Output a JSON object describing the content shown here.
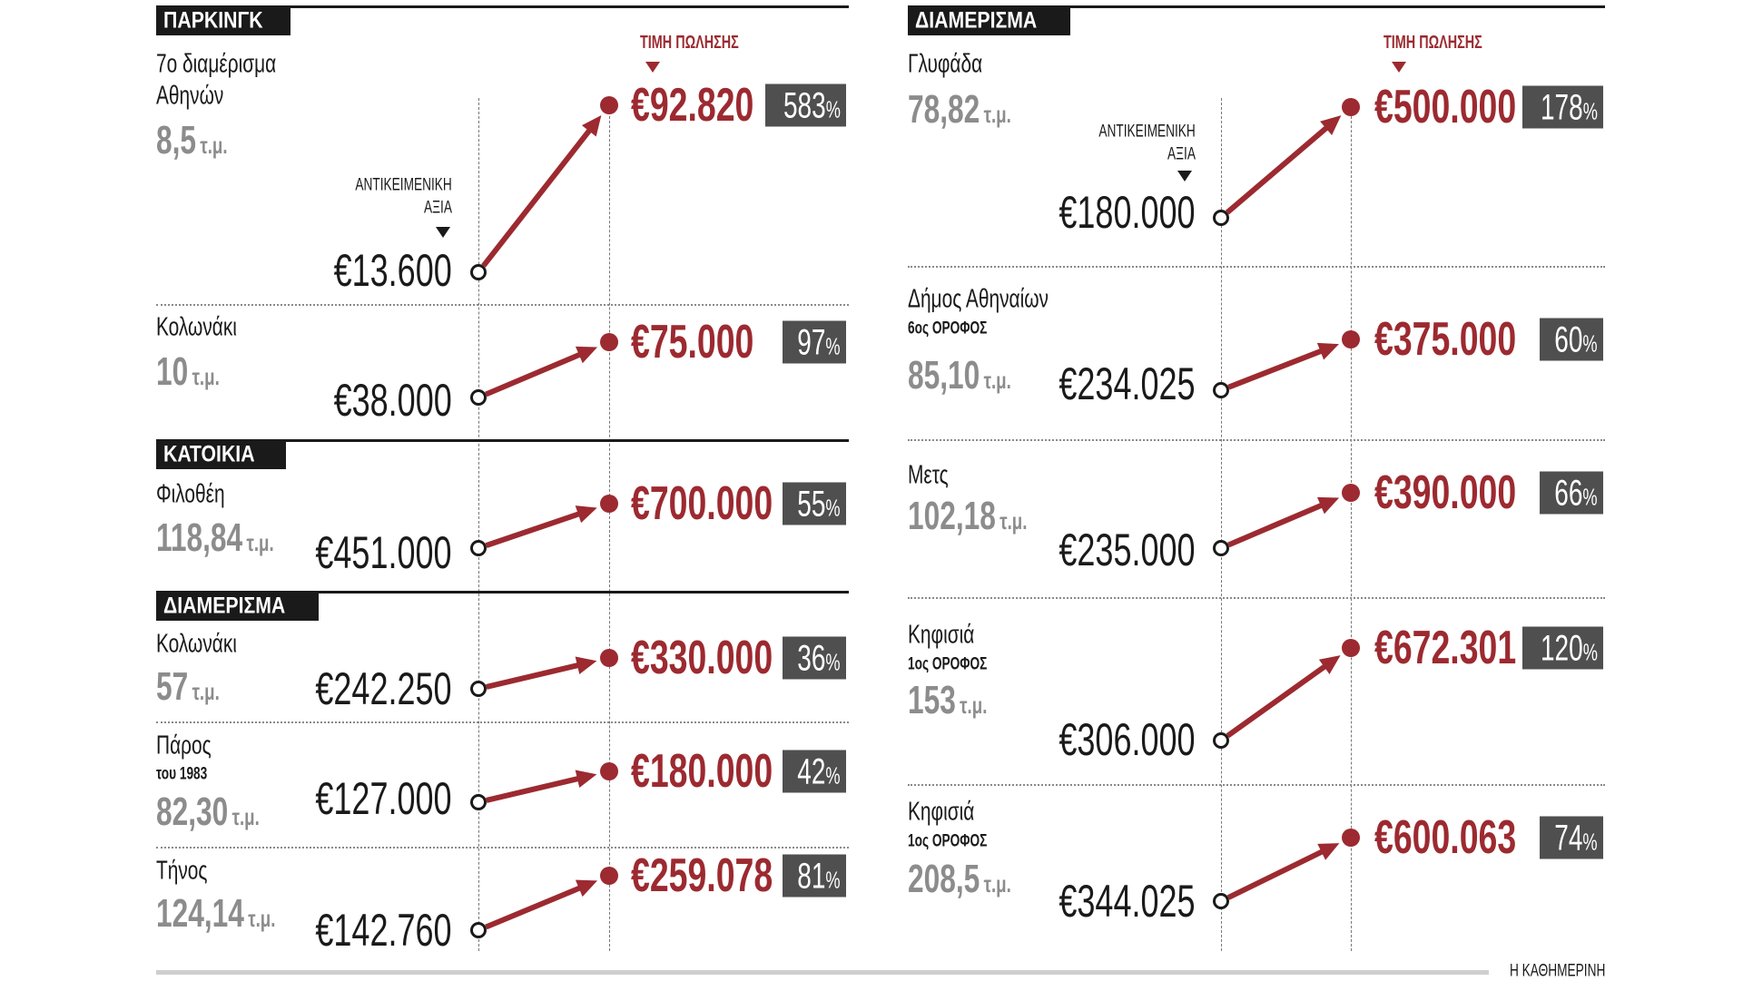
{
  "labels": {
    "objective_value": [
      "ΑΝΤΙΚΕΙΜΕΝΙΚΗ",
      "ΑΞΙΑ"
    ],
    "sale_price": "ΤΙΜΗ ΠΩΛΗΣΗΣ",
    "unit": "τ.μ.",
    "pct_symbol": "%",
    "source": "Η ΚΑΘΗΜΕΡΙΝΗ"
  },
  "colors": {
    "accent": "#9c2a30",
    "badge": "#4f4f4f",
    "size_text": "#8c8c8c",
    "header": "#1a1a1a"
  },
  "chart_data": {
    "type": "slope",
    "title": "",
    "xlabel": "",
    "ylabel": "",
    "left": {
      "sections": [
        {
          "title": "ΠΑΡΚΙΝΓΚ",
          "rows": [
            {
              "name": "7ο διαμέρισμα",
              "name_line2": "Αθηνών",
              "size": "8,5",
              "value": "€13.600",
              "sale": "€92.820",
              "pct": "583"
            },
            {
              "name": "Κολωνάκι",
              "size": "10",
              "value": "€38.000",
              "sale": "€75.000",
              "pct": "97"
            }
          ]
        },
        {
          "title": "ΚΑΤΟΙΚΙΑ",
          "rows": [
            {
              "name": "Φιλοθέη",
              "size": "118,84",
              "value": "€451.000",
              "sale": "€700.000",
              "pct": "55"
            }
          ]
        },
        {
          "title": "ΔΙΑΜΕΡΙΣΜΑ",
          "rows": [
            {
              "name": "Κολωνάκι",
              "size": "57",
              "value": "€242.250",
              "sale": "€330.000",
              "pct": "36"
            },
            {
              "name": "Πάρος",
              "sub": "του 1983",
              "size": "82,30",
              "value": "€127.000",
              "sale": "€180.000",
              "pct": "42"
            },
            {
              "name": "Τήνος",
              "size": "124,14",
              "value": "€142.760",
              "sale": "€259.078",
              "pct": "81"
            }
          ]
        }
      ]
    },
    "right": {
      "sections": [
        {
          "title": "ΔΙΑΜΕΡΙΣΜΑ",
          "rows": [
            {
              "name": "Γλυφάδα",
              "size": "78,82",
              "value": "€180.000",
              "sale": "€500.000",
              "pct": "178"
            },
            {
              "name": "Δήμος Αθηναίων",
              "sub": "6ος ΟΡΟΦΟΣ",
              "size": "85,10",
              "value": "€234.025",
              "sale": "€375.000",
              "pct": "60"
            },
            {
              "name": "Μετς",
              "size": "102,18",
              "value": "€235.000",
              "sale": "€390.000",
              "pct": "66"
            },
            {
              "name": "Κηφισιά",
              "sub": "1ος ΟΡΟΦΟΣ",
              "size": "153",
              "value": "€306.000",
              "sale": "€672.301",
              "pct": "120"
            },
            {
              "name": "Κηφισιά",
              "sub": "1ος ΟΡΟΦΟΣ",
              "size": "208,5",
              "value": "€344.025",
              "sale": "€600.063",
              "pct": "74"
            }
          ]
        }
      ]
    }
  }
}
